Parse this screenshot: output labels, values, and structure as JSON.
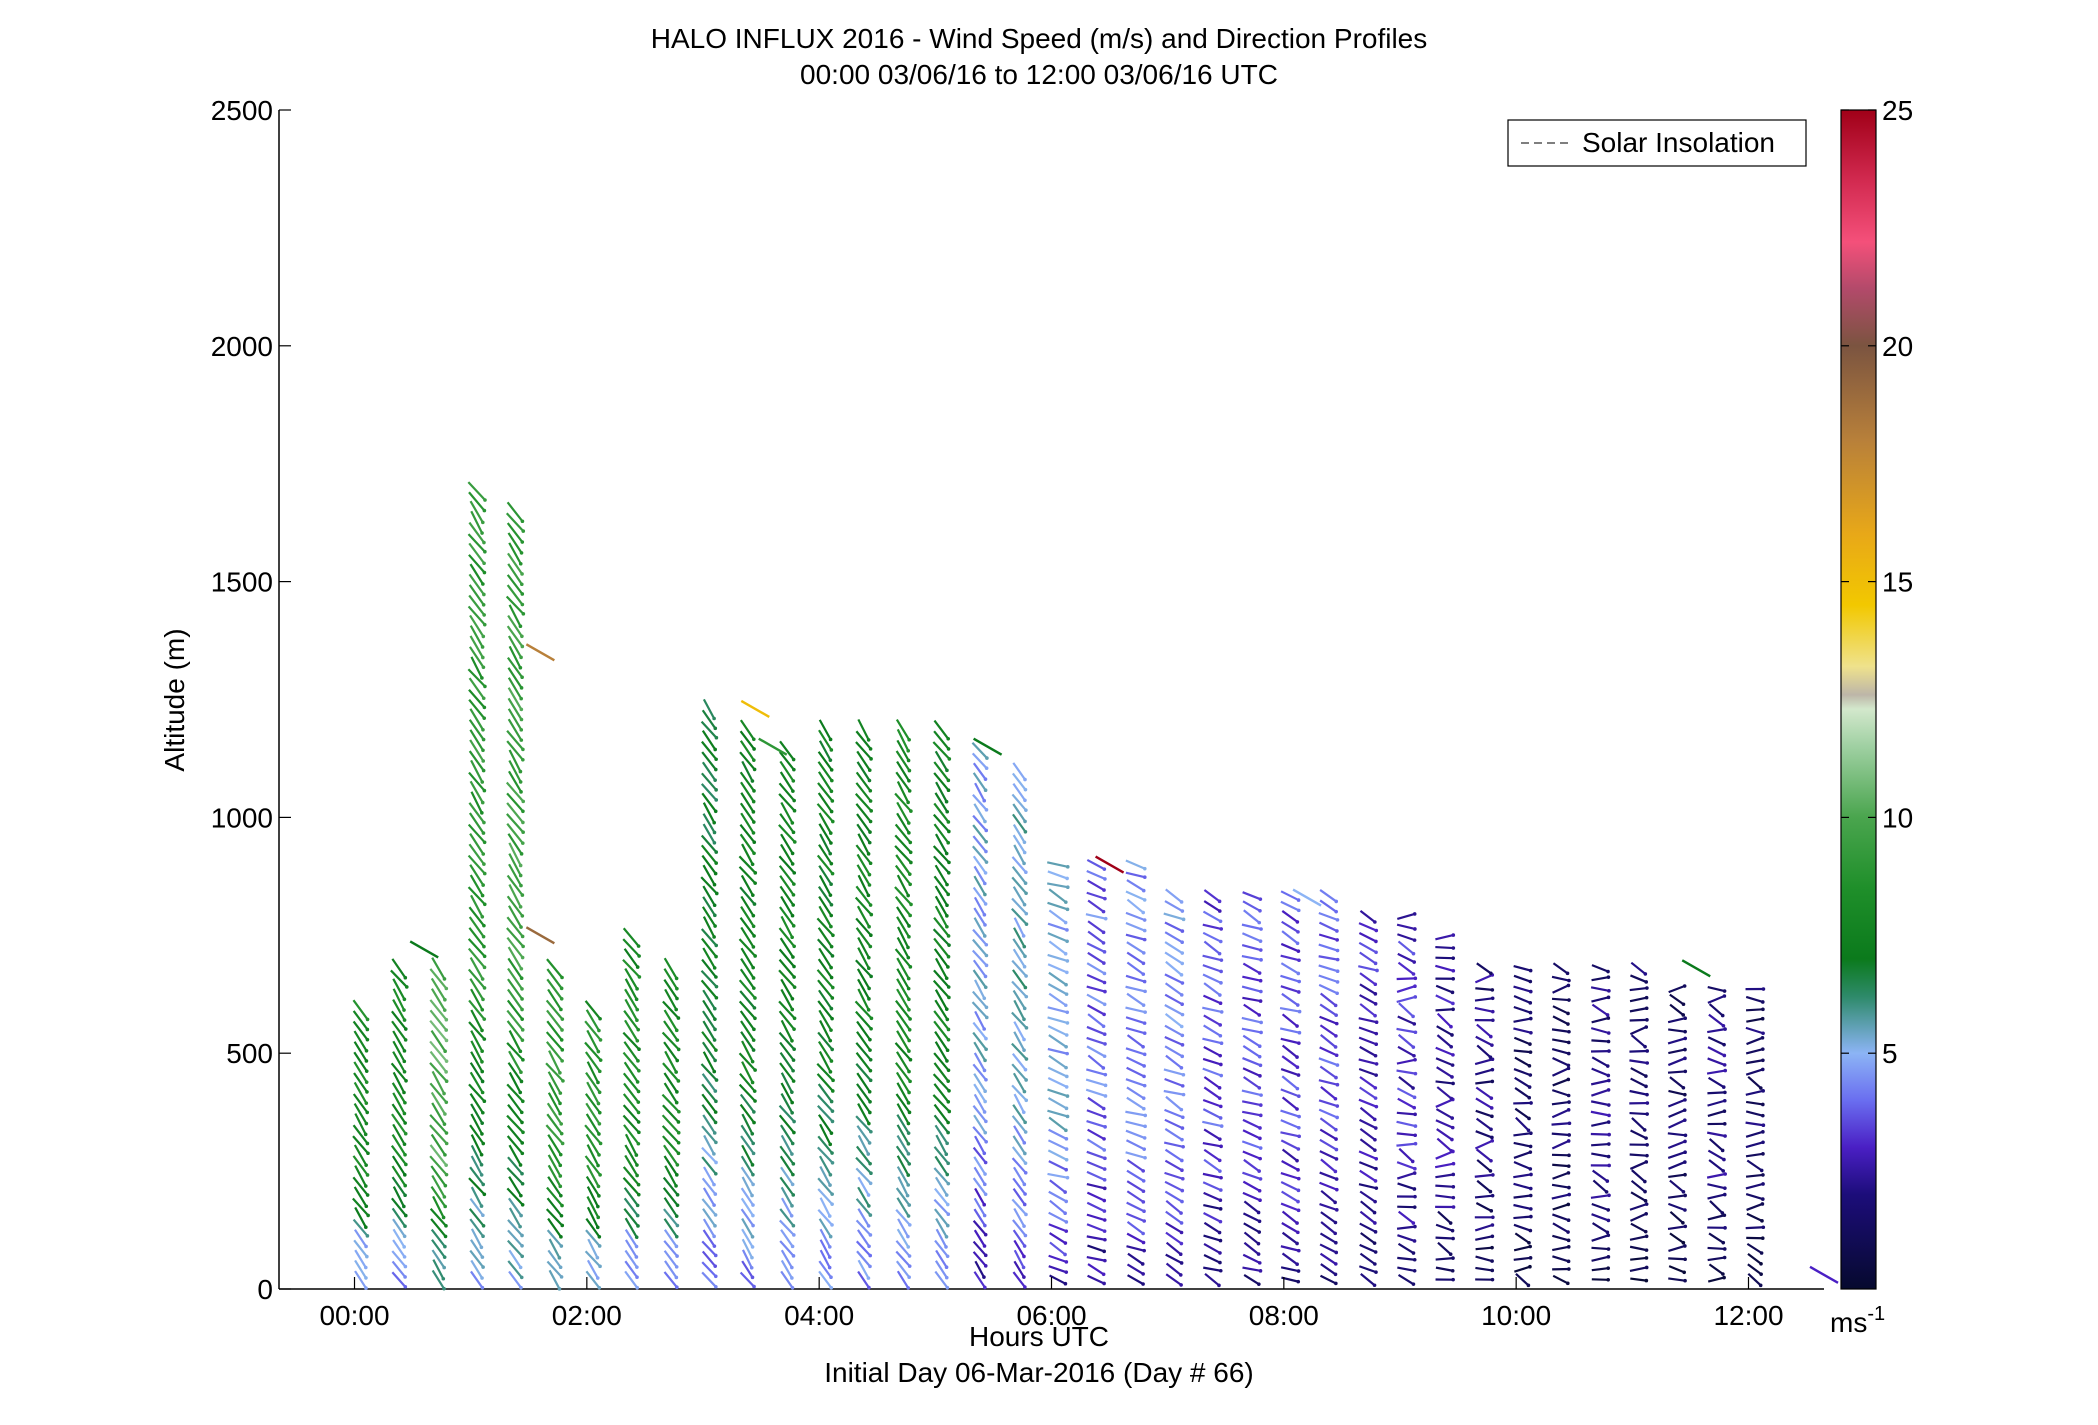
{
  "chart_data": {
    "type": "scatter",
    "title": "HALO INFLUX 2016 - Wind Speed (m/s) and Direction Profiles",
    "subtitle": "00:00 03/06/16 to 12:00 03/06/16  UTC",
    "xlabel": "Hours UTC",
    "xlabel2": "Initial Day 06-Mar-2016 (Day # 66)",
    "ylabel": "Altitude (m)",
    "xlim": [
      -0.65,
      12.65
    ],
    "ylim": [
      0,
      2500
    ],
    "x_ticks": [
      0,
      2,
      4,
      6,
      8,
      10,
      12
    ],
    "x_tick_labels": [
      "00:00",
      "02:00",
      "04:00",
      "06:00",
      "08:00",
      "10:00",
      "12:00"
    ],
    "y_ticks": [
      0,
      500,
      1000,
      1500,
      2000,
      2500
    ],
    "y_tick_labels": [
      "0",
      "500",
      "1000",
      "1500",
      "2000",
      "2500"
    ],
    "legend": {
      "entries": [
        "Solar Insolation"
      ],
      "placement": "top-right",
      "line_style": "dashed",
      "line_color": "#7f7f7f"
    },
    "colorbar": {
      "range": [
        0,
        25
      ],
      "ticks": [
        5,
        10,
        15,
        20,
        25
      ],
      "tick_labels": [
        "5",
        "10",
        "15",
        "20",
        "25"
      ],
      "unit_label": "ms",
      "unit_exponent": "-1",
      "colormap": [
        [
          0,
          "#060a2e"
        ],
        [
          2,
          "#1c0d7a"
        ],
        [
          3,
          "#4a1fc4"
        ],
        [
          4,
          "#6a6ef0"
        ],
        [
          5,
          "#8cb4f5"
        ],
        [
          5.6,
          "#5d9fb0"
        ],
        [
          6.2,
          "#2e8a6a"
        ],
        [
          7,
          "#0b7a1c"
        ],
        [
          8.5,
          "#1f8f2a"
        ],
        [
          10,
          "#4aa54e"
        ],
        [
          11.5,
          "#9fd0a2"
        ],
        [
          12.3,
          "#d3e8cc"
        ],
        [
          12.6,
          "#bdb6a8"
        ],
        [
          13.2,
          "#efe28c"
        ],
        [
          14.5,
          "#f2c800"
        ],
        [
          16,
          "#e8a818"
        ],
        [
          18,
          "#b8803a"
        ],
        [
          20,
          "#7b5440"
        ],
        [
          21.2,
          "#b24a6a"
        ],
        [
          22.2,
          "#f4507a"
        ],
        [
          23.5,
          "#d22a50"
        ],
        [
          25,
          "#a00018"
        ]
      ]
    },
    "profiles_note": "Each column is a wind profile; sticks show wind direction, colour shows speed (m/s).",
    "profiles": [
      {
        "t": 0.0,
        "top": 600,
        "speed": 8
      },
      {
        "t": 0.33,
        "top": 700,
        "speed": 8
      },
      {
        "t": 0.67,
        "top": 700,
        "speed": 10
      },
      {
        "t": 1.0,
        "top": 1700,
        "speed": 9
      },
      {
        "t": 1.33,
        "top": 1650,
        "speed": 9.5
      },
      {
        "t": 1.67,
        "top": 700,
        "speed": 9
      },
      {
        "t": 2.0,
        "top": 600,
        "speed": 8.5
      },
      {
        "t": 2.33,
        "top": 750,
        "speed": 8
      },
      {
        "t": 2.67,
        "top": 700,
        "speed": 8
      },
      {
        "t": 3.0,
        "top": 1250,
        "speed": 7
      },
      {
        "t": 3.33,
        "top": 1200,
        "speed": 7.5
      },
      {
        "t": 3.67,
        "top": 1150,
        "speed": 7.5
      },
      {
        "t": 4.0,
        "top": 1200,
        "speed": 7.5
      },
      {
        "t": 4.33,
        "top": 1200,
        "speed": 7.5
      },
      {
        "t": 4.67,
        "top": 1200,
        "speed": 8
      },
      {
        "t": 5.0,
        "top": 1200,
        "speed": 7.5
      },
      {
        "t": 5.33,
        "top": 1150,
        "speed": 5
      },
      {
        "t": 5.67,
        "top": 1100,
        "speed": 5.5
      },
      {
        "t": 6.0,
        "top": 900,
        "speed": 5
      },
      {
        "t": 6.33,
        "top": 900,
        "speed": 4
      },
      {
        "t": 6.67,
        "top": 900,
        "speed": 4.5
      },
      {
        "t": 7.0,
        "top": 850,
        "speed": 4.5
      },
      {
        "t": 7.33,
        "top": 850,
        "speed": 3.5
      },
      {
        "t": 7.67,
        "top": 850,
        "speed": 3.5
      },
      {
        "t": 8.0,
        "top": 850,
        "speed": 3.5
      },
      {
        "t": 8.33,
        "top": 850,
        "speed": 3.5
      },
      {
        "t": 8.67,
        "top": 800,
        "speed": 3
      },
      {
        "t": 9.0,
        "top": 800,
        "speed": 3
      },
      {
        "t": 9.33,
        "top": 750,
        "speed": 2.5
      },
      {
        "t": 9.67,
        "top": 700,
        "speed": 2
      },
      {
        "t": 10.0,
        "top": 700,
        "speed": 1.5
      },
      {
        "t": 10.33,
        "top": 700,
        "speed": 1.5
      },
      {
        "t": 10.67,
        "top": 700,
        "speed": 2
      },
      {
        "t": 11.0,
        "top": 700,
        "speed": 1.5
      },
      {
        "t": 11.33,
        "top": 650,
        "speed": 1.5
      },
      {
        "t": 11.67,
        "top": 650,
        "speed": 2
      },
      {
        "t": 12.0,
        "top": 650,
        "speed": 1.5
      }
    ],
    "isolated_sticks": [
      {
        "t": 0.6,
        "alt": 720,
        "speed": 7
      },
      {
        "t": 1.6,
        "alt": 1350,
        "speed": 18
      },
      {
        "t": 1.6,
        "alt": 750,
        "speed": 19
      },
      {
        "t": 3.45,
        "alt": 1230,
        "speed": 15
      },
      {
        "t": 3.6,
        "alt": 1150,
        "speed": 9
      },
      {
        "t": 5.45,
        "alt": 1150,
        "speed": 7
      },
      {
        "t": 6.5,
        "alt": 900,
        "speed": 25
      },
      {
        "t": 8.2,
        "alt": 830,
        "speed": 5
      },
      {
        "t": 11.55,
        "alt": 680,
        "speed": 7
      },
      {
        "t": 12.65,
        "alt": 30,
        "speed": 3
      }
    ]
  }
}
